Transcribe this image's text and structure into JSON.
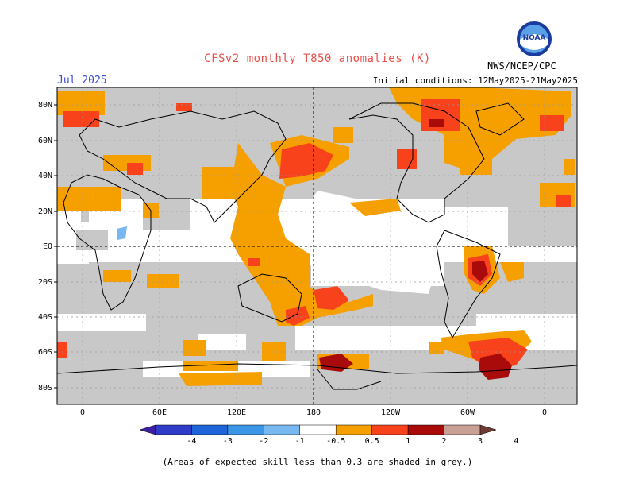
{
  "header": {
    "title": "CFSv2 monthly T850 anomalies (K)",
    "month": "Jul 2025",
    "initial_conditions": "Initial conditions: 12May2025-21May2025",
    "org": "NWS/NCEP/CPC",
    "logo_text": "NOAA"
  },
  "map": {
    "lat_labels": [
      "80N",
      "60N",
      "40N",
      "20N",
      "EQ",
      "20S",
      "40S",
      "60S",
      "80S"
    ],
    "lon_labels": [
      "0",
      "60E",
      "120E",
      "180",
      "120W",
      "60W",
      "0"
    ],
    "grey_color": "#c8c8c8",
    "colors": {
      "anom_0_5_1": "#f6a000",
      "anom_1_2": "#f8421c",
      "anom_2_3": "#a90a0a",
      "anom_3_4": "#c8a096",
      "anom_m1_m0_5": "#78b8f0"
    }
  },
  "colorbar": {
    "labels": [
      "-4",
      "-3",
      "-2",
      "-1",
      "-0.5",
      "0.5",
      "1",
      "2",
      "3",
      "4"
    ],
    "colors": [
      "#3c1ea0",
      "#2e3cc8",
      "#1c64d8",
      "#3c96e8",
      "#78b8f0",
      "#ffffff",
      "#f6a000",
      "#f8421c",
      "#a90a0a",
      "#c8a096",
      "#6e3c32"
    ]
  },
  "footnote": "(Areas of expected skill less than 0.3 are shaded in grey.)"
}
